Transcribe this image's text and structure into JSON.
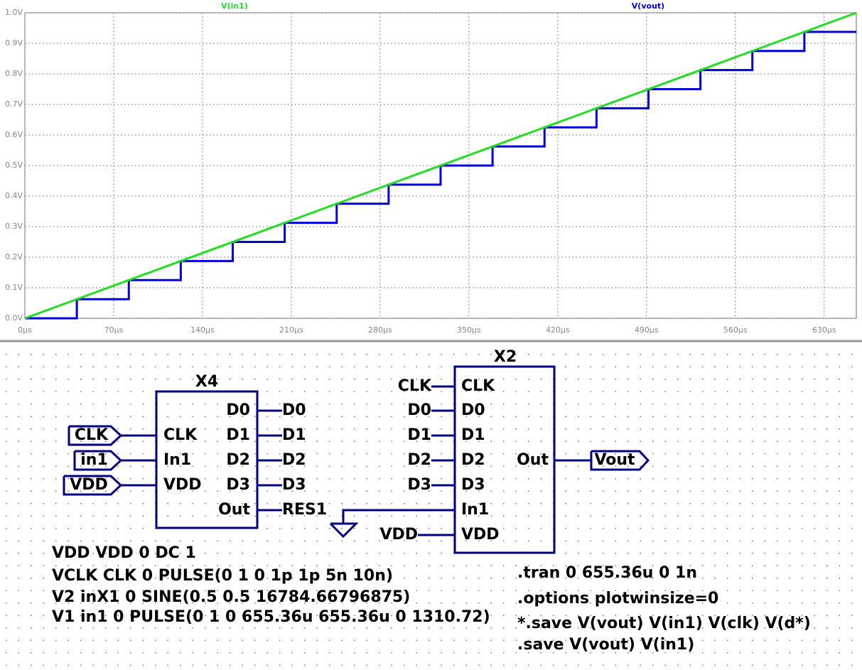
{
  "chart_data": {
    "type": "line",
    "xlim": [
      0,
      655.36
    ],
    "ylim": [
      0,
      1
    ],
    "xticks": [
      {
        "value": 0,
        "label": "0µs"
      },
      {
        "value": 70,
        "label": "70µs"
      },
      {
        "value": 140,
        "label": "140µs"
      },
      {
        "value": 210,
        "label": "210µs"
      },
      {
        "value": 280,
        "label": "280µs"
      },
      {
        "value": 350,
        "label": "350µs"
      },
      {
        "value": 420,
        "label": "420µs"
      },
      {
        "value": 490,
        "label": "490µs"
      },
      {
        "value": 560,
        "label": "560µs"
      },
      {
        "value": 630,
        "label": "630µs"
      }
    ],
    "yticks": [
      {
        "value": 0,
        "label": "0.0V"
      },
      {
        "value": 0.1,
        "label": "0.1V"
      },
      {
        "value": 0.2,
        "label": "0.2V"
      },
      {
        "value": 0.3,
        "label": "0.3V"
      },
      {
        "value": 0.4,
        "label": "0.4V"
      },
      {
        "value": 0.5,
        "label": "0.5V"
      },
      {
        "value": 0.6,
        "label": "0.6V"
      },
      {
        "value": 0.7,
        "label": "0.7V"
      },
      {
        "value": 0.8,
        "label": "0.8V"
      },
      {
        "value": 0.9,
        "label": "0.9V"
      },
      {
        "value": 1,
        "label": "1.0V"
      }
    ],
    "grid": true,
    "series": [
      {
        "name": "V(in1)",
        "color": "#22dd22",
        "x": [
          0,
          655.36
        ],
        "values": [
          0,
          1
        ]
      },
      {
        "name": "V(vout)",
        "color": "#0000dd",
        "x": [
          0,
          40.96,
          40.96,
          81.92,
          81.92,
          122.88,
          122.88,
          163.84,
          163.84,
          204.8,
          204.8,
          245.76,
          245.76,
          286.72,
          286.72,
          327.68,
          327.68,
          368.64,
          368.64,
          409.6,
          409.6,
          450.56,
          450.56,
          491.52,
          491.52,
          532.48,
          532.48,
          573.44,
          573.44,
          614.4,
          614.4,
          655.36
        ],
        "values": [
          0,
          0,
          0.0625,
          0.0625,
          0.125,
          0.125,
          0.1875,
          0.1875,
          0.25,
          0.25,
          0.3125,
          0.3125,
          0.375,
          0.375,
          0.4375,
          0.4375,
          0.5,
          0.5,
          0.5625,
          0.5625,
          0.625,
          0.625,
          0.6875,
          0.6875,
          0.75,
          0.75,
          0.8125,
          0.8125,
          0.875,
          0.875,
          0.9375,
          0.9375
        ]
      }
    ]
  },
  "schematic": {
    "x4": {
      "name": "X4",
      "left_pins": [
        "CLK",
        "In1",
        "VDD"
      ],
      "right_pins": [
        "D0",
        "D1",
        "D2",
        "D3",
        "Out"
      ],
      "input_flags": [
        "CLK",
        "in1",
        "VDD"
      ],
      "output_nets": [
        "D0",
        "D1",
        "D2",
        "D3",
        "RES1"
      ]
    },
    "x2": {
      "name": "X2",
      "left_pins": [
        "CLK",
        "D0",
        "D1",
        "D2",
        "D3",
        "In1",
        "VDD"
      ],
      "right_pins": [
        "Out"
      ],
      "input_nets": [
        "CLK",
        "D0",
        "D1",
        "D2",
        "D3",
        null,
        "VDD"
      ],
      "output_flag": "Vout"
    },
    "directives_left": [
      "VDD VDD 0 DC 1",
      "VCLK CLK 0 PULSE(0 1 0 1p 1p 5n 10n)",
      "V2 inX1 0 SINE(0.5 0.5 16784.66796875)",
      "V1 in1  0 PULSE(0 1 0 655.36u 655.36u 0 1310.72)"
    ],
    "directives_right": [
      ".tran 0 655.36u 0 1n",
      ".options plotwinsize=0",
      "*.save V(vout) V(in1) V(clk) V(d*)",
      ".save V(vout) V(in1)"
    ]
  }
}
